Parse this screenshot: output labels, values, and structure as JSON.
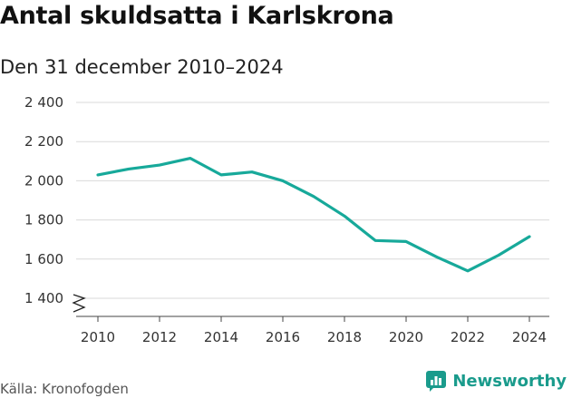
{
  "header": {
    "title": "Antal skuldsatta i Karlskrona",
    "subtitle": "Den 31 december 2010–2024"
  },
  "footer": {
    "source": "Källa: Kronofogden",
    "brand": "Newsworthy"
  },
  "colors": {
    "line": "#17a99a",
    "grid": "#d9d9d9",
    "brand": "#1a9b8c"
  },
  "chart_data": {
    "type": "line",
    "x": [
      2010,
      2011,
      2012,
      2013,
      2014,
      2015,
      2016,
      2017,
      2018,
      2019,
      2020,
      2021,
      2022,
      2023,
      2024
    ],
    "series": [
      {
        "values": [
          2030,
          2060,
          2080,
          2115,
          2030,
          2045,
          2000,
          1920,
          1820,
          1695,
          1690,
          1610,
          1540,
          1620,
          1715
        ]
      }
    ],
    "x_ticks": [
      2010,
      2012,
      2014,
      2016,
      2018,
      2020,
      2022,
      2024
    ],
    "x_tick_labels": [
      "2010",
      "2012",
      "2014",
      "2016",
      "2018",
      "2020",
      "2022",
      "2024"
    ],
    "y_ticks": [
      1400,
      1600,
      1800,
      2000,
      2200,
      2400
    ],
    "y_tick_labels": [
      "1 400",
      "1 600",
      "1 800",
      "2 000",
      "2 200",
      "2 400"
    ],
    "xlim": [
      2010,
      2024
    ],
    "ylim": [
      1400,
      2400
    ],
    "grid": true,
    "axis_break": true,
    "legend": "none"
  }
}
